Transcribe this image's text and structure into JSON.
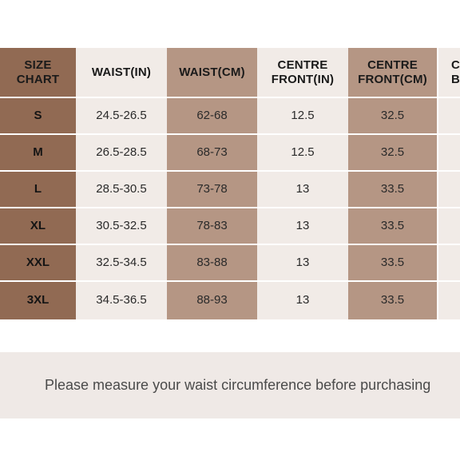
{
  "colors": {
    "size_col": "#916a53",
    "light_col": "#f1ebe7",
    "tan_col": "#b59684",
    "note_bg": "#efe9e6"
  },
  "table": {
    "headers": [
      "SIZE\nCHART",
      "WAIST(IN)",
      "WAIST(CM)",
      "CENTRE\nFRONT(IN)",
      "CENTRE\nFRONT(CM)",
      "C\nB"
    ],
    "sizes": [
      "S",
      "M",
      "L",
      "XL",
      "XXL",
      "3XL"
    ],
    "waist_in": [
      "24.5-26.5",
      "26.5-28.5",
      "28.5-30.5",
      "30.5-32.5",
      "32.5-34.5",
      "34.5-36.5"
    ],
    "waist_cm": [
      "62-68",
      "68-73",
      "73-78",
      "78-83",
      "83-88",
      "88-93"
    ],
    "centre_front_in": [
      "12.5",
      "12.5",
      "13",
      "13",
      "13",
      "13"
    ],
    "centre_front_cm": [
      "32.5",
      "32.5",
      "33.5",
      "33.5",
      "33.5",
      "33.5"
    ]
  },
  "note": {
    "text": "Please measure your waist circumference before purchasing"
  }
}
